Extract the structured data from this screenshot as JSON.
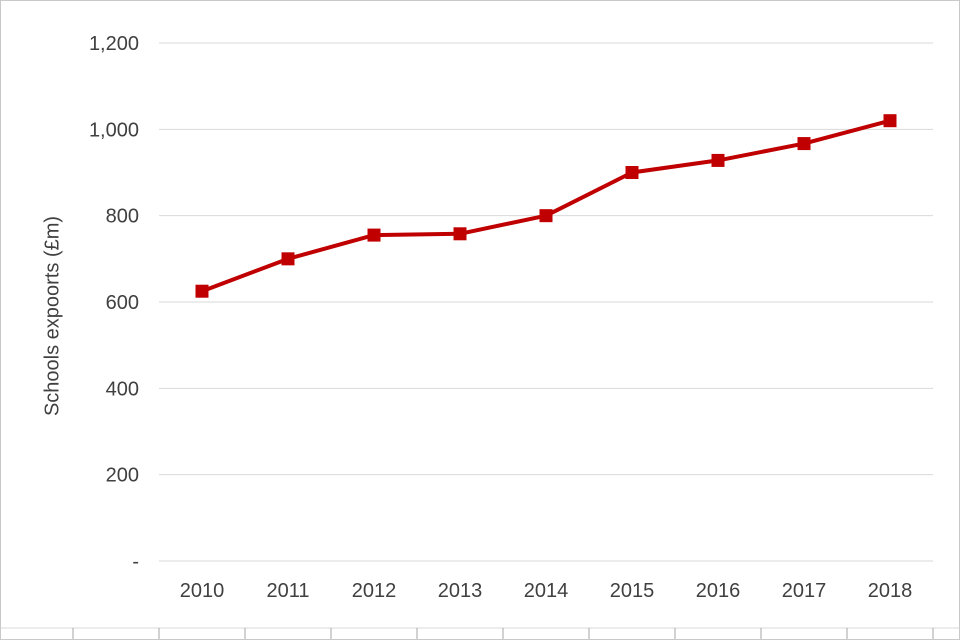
{
  "chart_data": {
    "type": "line",
    "title": "",
    "xlabel": "",
    "ylabel": "Schools expoorts (£m)",
    "categories": [
      "2010",
      "2011",
      "2012",
      "2013",
      "2014",
      "2015",
      "2016",
      "2017",
      "2018"
    ],
    "values": [
      625,
      700,
      755,
      758,
      800,
      900,
      928,
      967,
      1020
    ],
    "ylim": [
      0,
      1200
    ],
    "ytick_step": 200,
    "ytick_labels": [
      "-",
      "200",
      "400",
      "600",
      "800",
      "1,000",
      "1,200"
    ],
    "grid": true,
    "legend": "none",
    "marker": "square",
    "line_color": "#c00000"
  },
  "colors": {
    "background": "#ffffff",
    "grid": "#d9d9d9",
    "axis_text": "#404040",
    "series": "#c00000",
    "tick": "#a6a6a6",
    "border": "#c9c9c9"
  }
}
